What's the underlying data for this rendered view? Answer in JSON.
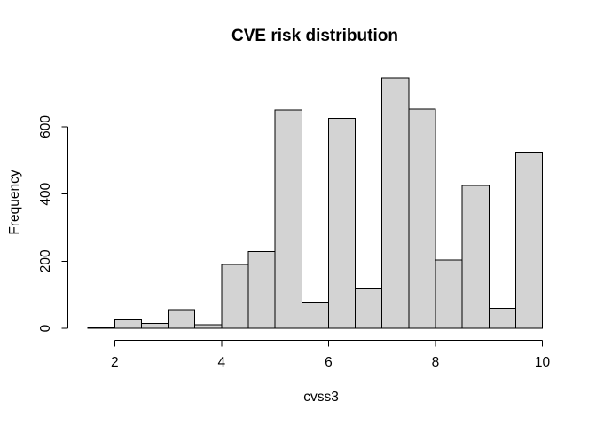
{
  "chart_data": {
    "type": "bar",
    "subtype": "histogram",
    "title": "CVE risk distribution",
    "xlabel": "cvss3",
    "ylabel": "Frequency",
    "breaks": [
      1.5,
      2.0,
      2.5,
      3.0,
      3.5,
      4.0,
      4.5,
      5.0,
      5.5,
      6.0,
      6.5,
      7.0,
      7.5,
      8.0,
      8.5,
      9.0,
      9.5,
      10.0
    ],
    "counts": [
      3,
      25,
      15,
      55,
      10,
      190,
      228,
      650,
      78,
      625,
      118,
      745,
      653,
      204,
      425,
      60,
      525
    ],
    "x_ticks": [
      2,
      4,
      6,
      8,
      10
    ],
    "y_ticks": [
      0,
      200,
      400,
      600
    ],
    "xlim": [
      1.5,
      10
    ],
    "ylim": [
      0,
      745
    ],
    "grid": false,
    "legend_position": "none",
    "bar_fill": "#d3d3d3",
    "bar_stroke": "#000000",
    "axis_color": "#000000",
    "text_color": "#000000",
    "background": "#ffffff"
  }
}
